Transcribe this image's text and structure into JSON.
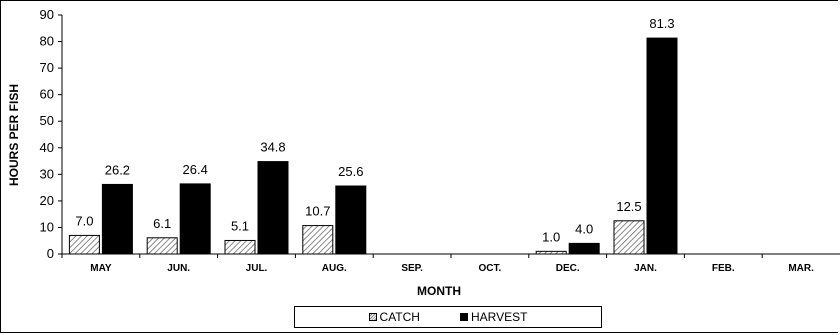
{
  "chart_data": {
    "type": "bar",
    "categories": [
      "MAY",
      "JUN.",
      "JUL.",
      "AUG.",
      "SEP.",
      "OCT.",
      "DEC.",
      "JAN.",
      "FEB.",
      "MAR."
    ],
    "series": [
      {
        "name": "CATCH",
        "values": [
          7.0,
          6.1,
          5.1,
          10.7,
          null,
          null,
          1.0,
          12.5,
          null,
          null
        ],
        "color": "#bdbdbd",
        "pattern": "hatch"
      },
      {
        "name": "HARVEST",
        "values": [
          26.2,
          26.4,
          34.8,
          25.6,
          null,
          null,
          4.0,
          81.3,
          null,
          null
        ],
        "color": "#000000",
        "pattern": "solid"
      }
    ],
    "data_labels": {
      "CATCH": [
        "7.0",
        "6.1",
        "5.1",
        "10.7",
        "",
        "",
        "1.0",
        "12.5",
        "",
        ""
      ],
      "HARVEST": [
        "26.2",
        "26.4",
        "34.8",
        "25.6",
        "",
        "",
        "4.0",
        "81.3",
        "",
        ""
      ]
    },
    "xlabel": "MONTH",
    "ylabel": "HOURS PER FISH",
    "ylim": [
      0,
      90
    ],
    "yticks": [
      0,
      10,
      20,
      30,
      40,
      50,
      60,
      70,
      80,
      90
    ],
    "grid": false,
    "legend_position": "bottom"
  }
}
